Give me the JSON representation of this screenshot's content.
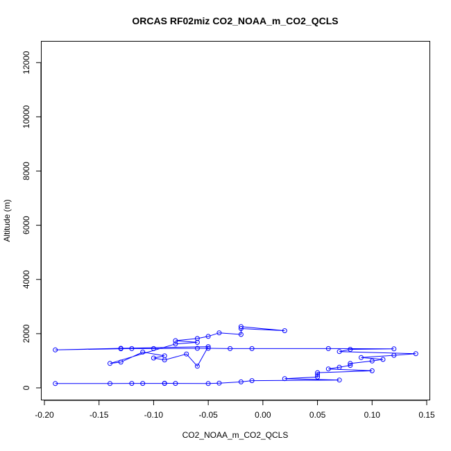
{
  "chart_data": {
    "type": "line",
    "title": "ORCAS RF02miz CO2_NOAA_m_CO2_QCLS",
    "xlabel": "CO2_NOAA_m_CO2_QCLS",
    "ylabel": "Altitude (m)",
    "xlim": [
      -0.2,
      0.15
    ],
    "ylim": [
      0,
      12800
    ],
    "x_ticks": [
      -0.2,
      -0.15,
      -0.1,
      -0.05,
      0.0,
      0.05,
      0.1,
      0.15
    ],
    "x_tick_labels": [
      "-0.20",
      "-0.15",
      "-0.10",
      "-0.05",
      "0.00",
      "0.05",
      "0.10",
      "0.15"
    ],
    "y_ticks": [
      0,
      2000,
      4000,
      6000,
      8000,
      10000,
      12000
    ],
    "y_tick_labels": [
      "0",
      "2000",
      "4000",
      "6000",
      "8000",
      "10000",
      "12000"
    ],
    "grid": false,
    "legend": "none",
    "series": [
      {
        "color": "#0000ff",
        "marker": "open-circle",
        "points": [
          {
            "x": -0.19,
            "y": 160
          },
          {
            "x": -0.14,
            "y": 160
          },
          {
            "x": -0.12,
            "y": 165
          },
          {
            "x": -0.11,
            "y": 165
          },
          {
            "x": -0.09,
            "y": 165
          },
          {
            "x": -0.09,
            "y": 170
          },
          {
            "x": -0.08,
            "y": 165
          },
          {
            "x": -0.05,
            "y": 160
          },
          {
            "x": -0.04,
            "y": 175
          },
          {
            "x": -0.02,
            "y": 220
          },
          {
            "x": -0.01,
            "y": 265
          },
          {
            "x": 0.07,
            "y": 290
          },
          {
            "x": 0.02,
            "y": 340
          },
          {
            "x": 0.05,
            "y": 400
          },
          {
            "x": 0.05,
            "y": 480
          },
          {
            "x": 0.05,
            "y": 560
          },
          {
            "x": 0.1,
            "y": 630
          },
          {
            "x": 0.06,
            "y": 700
          },
          {
            "x": 0.07,
            "y": 760
          },
          {
            "x": 0.08,
            "y": 830
          },
          {
            "x": 0.08,
            "y": 900
          },
          {
            "x": 0.1,
            "y": 990
          },
          {
            "x": 0.11,
            "y": 1050
          },
          {
            "x": 0.09,
            "y": 1120
          },
          {
            "x": 0.12,
            "y": 1200
          },
          {
            "x": 0.14,
            "y": 1260
          },
          {
            "x": 0.07,
            "y": 1340
          },
          {
            "x": 0.08,
            "y": 1420
          },
          {
            "x": 0.12,
            "y": 1440
          },
          {
            "x": 0.06,
            "y": 1450
          },
          {
            "x": -0.01,
            "y": 1450
          },
          {
            "x": -0.03,
            "y": 1450
          },
          {
            "x": -0.05,
            "y": 1460
          },
          {
            "x": -0.06,
            "y": 1460
          },
          {
            "x": -0.1,
            "y": 1450
          },
          {
            "x": -0.12,
            "y": 1450
          },
          {
            "x": -0.13,
            "y": 1445
          },
          {
            "x": -0.19,
            "y": 1400
          },
          {
            "x": -0.13,
            "y": 1460
          },
          {
            "x": -0.05,
            "y": 1520
          },
          {
            "x": -0.06,
            "y": 800
          },
          {
            "x": -0.07,
            "y": 1250
          },
          {
            "x": -0.09,
            "y": 1030
          },
          {
            "x": -0.1,
            "y": 1100
          },
          {
            "x": -0.09,
            "y": 1180
          },
          {
            "x": -0.11,
            "y": 1320
          },
          {
            "x": -0.13,
            "y": 950
          },
          {
            "x": -0.14,
            "y": 900
          },
          {
            "x": -0.08,
            "y": 1620
          },
          {
            "x": -0.06,
            "y": 1680
          },
          {
            "x": -0.08,
            "y": 1740
          },
          {
            "x": -0.06,
            "y": 1820
          },
          {
            "x": -0.05,
            "y": 1900
          },
          {
            "x": -0.04,
            "y": 2030
          },
          {
            "x": -0.02,
            "y": 1970
          },
          {
            "x": -0.02,
            "y": 2190
          },
          {
            "x": 0.02,
            "y": 2110
          },
          {
            "x": -0.02,
            "y": 2260
          }
        ]
      }
    ]
  }
}
